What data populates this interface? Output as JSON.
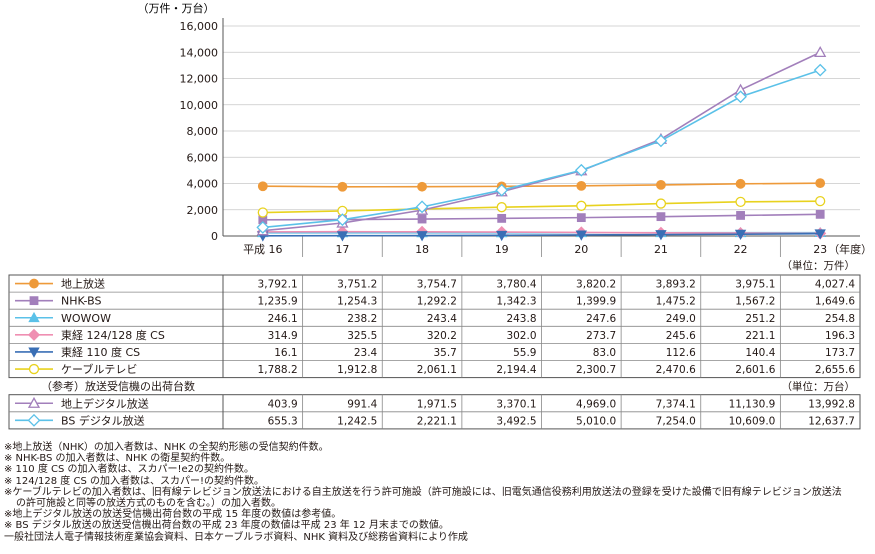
{
  "chart_data": {
    "type": "line",
    "y_unit_label": "（万件・万台）",
    "ylim": [
      0,
      16000
    ],
    "yticks": [
      "0",
      "2,000",
      "4,000",
      "6,000",
      "8,000",
      "10,000",
      "12,000",
      "14,000",
      "16,000"
    ],
    "yticks_values": [
      0,
      2000,
      4000,
      6000,
      8000,
      10000,
      12000,
      14000,
      16000
    ],
    "categories": [
      "平成 16",
      "17",
      "18",
      "19",
      "20",
      "21",
      "22",
      "23"
    ],
    "x_unit_label": "（年度）",
    "grid": "horizontal",
    "series": [
      {
        "name": "地上放送",
        "color": "#ee9a3a",
        "marker": "circle",
        "hollow": false,
        "values": [
          3792.1,
          3751.2,
          3754.7,
          3780.4,
          3820.2,
          3893.2,
          3975.1,
          4027.4
        ],
        "labels": [
          "3,792.1",
          "3,751.2",
          "3,754.7",
          "3,780.4",
          "3,820.2",
          "3,893.2",
          "3,975.1",
          "4,027.4"
        ]
      },
      {
        "name": "NHK-BS",
        "color": "#a27fbb",
        "marker": "square",
        "hollow": false,
        "values": [
          1235.9,
          1254.3,
          1292.2,
          1342.3,
          1399.9,
          1475.2,
          1567.2,
          1649.6
        ],
        "labels": [
          "1,235.9",
          "1,254.3",
          "1,292.2",
          "1,342.3",
          "1,399.9",
          "1,475.2",
          "1,567.2",
          "1,649.6"
        ]
      },
      {
        "name": "WOWOW",
        "color": "#5bc1e8",
        "marker": "triangle",
        "hollow": false,
        "values": [
          246.1,
          238.2,
          243.4,
          243.8,
          247.6,
          249.0,
          251.2,
          254.8
        ],
        "labels": [
          "246.1",
          "238.2",
          "243.4",
          "243.8",
          "247.6",
          "249.0",
          "251.2",
          "254.8"
        ]
      },
      {
        "name": "東経 124/128 度 CS",
        "color": "#ef8fb2",
        "marker": "diamond",
        "hollow": false,
        "values": [
          314.9,
          325.5,
          320.2,
          302.0,
          273.7,
          245.6,
          221.1,
          196.3
        ],
        "labels": [
          "314.9",
          "325.5",
          "320.2",
          "302.0",
          "273.7",
          "245.6",
          "221.1",
          "196.3"
        ]
      },
      {
        "name": "東経 110 度 CS",
        "color": "#3a6fb5",
        "marker": "triangle-down",
        "hollow": false,
        "values": [
          16.1,
          23.4,
          35.7,
          55.9,
          83.0,
          112.6,
          140.4,
          173.7
        ],
        "labels": [
          "16.1",
          "23.4",
          "35.7",
          "55.9",
          "83.0",
          "112.6",
          "140.4",
          "173.7"
        ]
      },
      {
        "name": "ケーブルテレビ",
        "color": "#e8d21e",
        "marker": "circle",
        "hollow": true,
        "values": [
          1788.2,
          1912.8,
          2061.1,
          2194.4,
          2300.7,
          2470.6,
          2601.6,
          2655.6
        ],
        "labels": [
          "1,788.2",
          "1,912.8",
          "2,061.1",
          "2,194.4",
          "2,300.7",
          "2,470.6",
          "2,601.6",
          "2,655.6"
        ]
      },
      {
        "name": "地上デジタル放送",
        "color": "#a27fbb",
        "marker": "triangle",
        "hollow": true,
        "values": [
          403.9,
          991.4,
          1971.5,
          3370.1,
          4969.0,
          7374.1,
          11130.9,
          13992.8
        ],
        "labels": [
          "403.9",
          "991.4",
          "1,971.5",
          "3,370.1",
          "4,969.0",
          "7,374.1",
          "11,130.9",
          "13,992.8"
        ]
      },
      {
        "name": "BS デジタル放送",
        "color": "#5bc1e8",
        "marker": "diamond",
        "hollow": true,
        "values": [
          655.3,
          1242.5,
          2221.1,
          3492.5,
          5010.0,
          7254.0,
          10609.0,
          12637.7
        ],
        "labels": [
          "655.3",
          "1,242.5",
          "2,221.1",
          "3,492.5",
          "5,010.0",
          "7,254.0",
          "10,609.0",
          "12,637.7"
        ]
      }
    ],
    "table": {
      "unit_label_subscribers": "（単位：万件）",
      "section_title": "（参考）放送受信機の出荷台数",
      "unit_label_shipments": "（単位：万台）"
    }
  },
  "notes": [
    "※地上放送（NHK）の加入者数は、NHK の全契約形態の受信契約件数。",
    "※ NHK-BS の加入者数は、NHK の衛星契約件数。",
    "※ 110 度 CS の加入者数は、スカパー!e2の契約件数。",
    "※ 124/128 度 CS の加入者数は、スカパー!の契約件数。",
    "※ケーブルテレビの加入者数は、旧有線テレビジョン放送法における自主放送を行う許可施設（許可施設には、旧電気通信役務利用放送法の登録を受けた設備で旧有線テレビジョン放送法",
    "の許可施設と同等の放送方式のものを含む。）の加入者数。",
    "※地上デジタル放送の放送受信機出荷台数の平成 15 年度の数値は参考値。",
    "※ BS デジタル放送の放送受信機出荷台数の平成 23 年度の数値は平成 23 年 12 月末までの数値。",
    "一般社団法人電子情報技術産業協会資料、日本ケーブルラボ資料、NHK 資料及び総務省資料により作成"
  ]
}
